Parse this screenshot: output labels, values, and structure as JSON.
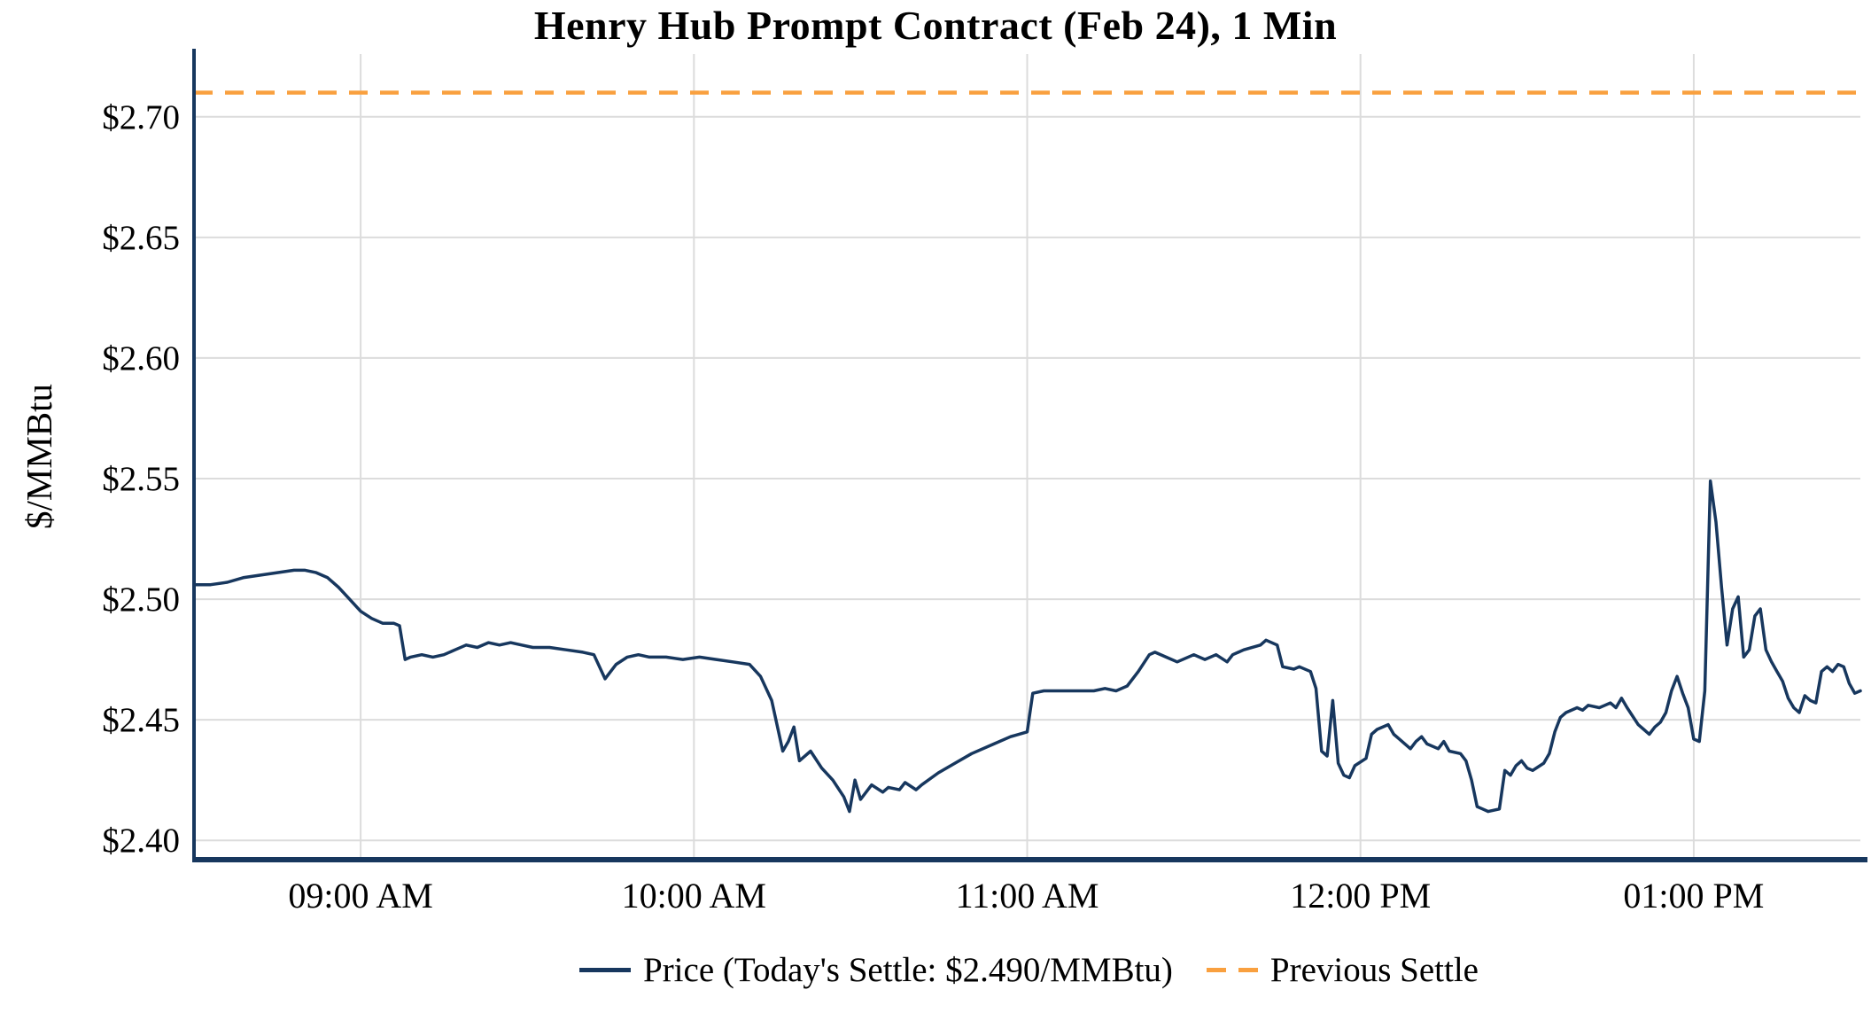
{
  "title": "Henry Hub Prompt Contract (Feb 24), 1 Min",
  "y_axis": {
    "label": "$/MMBtu"
  },
  "legend": {
    "price_label": "Price (Today's Settle: $2.490/MMBtu)",
    "previous_settle_label": "Previous Settle"
  },
  "colors": {
    "price": "#17375E",
    "previous_settle": "#F9A03F",
    "grid": "#DCDCDC",
    "axis": "#17375E",
    "background": "#FFFFFF",
    "text": "#000000"
  },
  "chart_data": {
    "type": "line",
    "title": "Henry Hub Prompt Contract (Feb 24), 1 Min",
    "xlabel": "",
    "ylabel": "$/MMBtu",
    "x_unit": "minutes after 08:30 AM",
    "xlim_minutes": [
      0,
      300
    ],
    "ylim": [
      2.392,
      2.726
    ],
    "grid": true,
    "legend_position": "bottom",
    "x_ticks": [
      {
        "minutes": 30,
        "label": "09:00 AM"
      },
      {
        "minutes": 90,
        "label": "10:00 AM"
      },
      {
        "minutes": 150,
        "label": "11:00 AM"
      },
      {
        "minutes": 210,
        "label": "12:00 PM"
      },
      {
        "minutes": 270,
        "label": "01:00 PM"
      }
    ],
    "y_ticks": [
      {
        "value": 2.4,
        "label": "$2.40"
      },
      {
        "value": 2.45,
        "label": "$2.45"
      },
      {
        "value": 2.5,
        "label": "$2.50"
      },
      {
        "value": 2.55,
        "label": "$2.55"
      },
      {
        "value": 2.6,
        "label": "$2.60"
      },
      {
        "value": 2.65,
        "label": "$2.65"
      },
      {
        "value": 2.7,
        "label": "$2.70"
      }
    ],
    "todays_settle": 2.49,
    "previous_settle": 2.71,
    "series": [
      {
        "name": "Price",
        "type": "line",
        "points": [
          [
            0,
            2.506
          ],
          [
            3,
            2.506
          ],
          [
            6,
            2.507
          ],
          [
            9,
            2.509
          ],
          [
            12,
            2.51
          ],
          [
            15,
            2.511
          ],
          [
            18,
            2.512
          ],
          [
            20,
            2.512
          ],
          [
            22,
            2.511
          ],
          [
            24,
            2.509
          ],
          [
            26,
            2.505
          ],
          [
            28,
            2.5
          ],
          [
            30,
            2.495
          ],
          [
            32,
            2.492
          ],
          [
            34,
            2.49
          ],
          [
            36,
            2.49
          ],
          [
            37,
            2.489
          ],
          [
            38,
            2.475
          ],
          [
            39,
            2.476
          ],
          [
            41,
            2.477
          ],
          [
            43,
            2.476
          ],
          [
            45,
            2.477
          ],
          [
            47,
            2.479
          ],
          [
            49,
            2.481
          ],
          [
            51,
            2.48
          ],
          [
            53,
            2.482
          ],
          [
            55,
            2.481
          ],
          [
            57,
            2.482
          ],
          [
            59,
            2.481
          ],
          [
            61,
            2.48
          ],
          [
            64,
            2.48
          ],
          [
            67,
            2.479
          ],
          [
            70,
            2.478
          ],
          [
            72,
            2.477
          ],
          [
            74,
            2.467
          ],
          [
            76,
            2.473
          ],
          [
            78,
            2.476
          ],
          [
            80,
            2.477
          ],
          [
            82,
            2.476
          ],
          [
            85,
            2.476
          ],
          [
            88,
            2.475
          ],
          [
            91,
            2.476
          ],
          [
            94,
            2.475
          ],
          [
            97,
            2.474
          ],
          [
            100,
            2.473
          ],
          [
            102,
            2.468
          ],
          [
            104,
            2.458
          ],
          [
            106,
            2.437
          ],
          [
            107,
            2.441
          ],
          [
            108,
            2.447
          ],
          [
            109,
            2.433
          ],
          [
            111,
            2.437
          ],
          [
            113,
            2.43
          ],
          [
            115,
            2.425
          ],
          [
            117,
            2.418
          ],
          [
            118,
            2.412
          ],
          [
            119,
            2.425
          ],
          [
            120,
            2.417
          ],
          [
            122,
            2.423
          ],
          [
            124,
            2.42
          ],
          [
            125,
            2.422
          ],
          [
            127,
            2.421
          ],
          [
            128,
            2.424
          ],
          [
            130,
            2.421
          ],
          [
            131,
            2.423
          ],
          [
            134,
            2.428
          ],
          [
            137,
            2.432
          ],
          [
            140,
            2.436
          ],
          [
            144,
            2.44
          ],
          [
            147,
            2.443
          ],
          [
            150,
            2.445
          ],
          [
            151,
            2.461
          ],
          [
            153,
            2.462
          ],
          [
            156,
            2.462
          ],
          [
            159,
            2.462
          ],
          [
            162,
            2.462
          ],
          [
            164,
            2.463
          ],
          [
            166,
            2.462
          ],
          [
            168,
            2.464
          ],
          [
            170,
            2.47
          ],
          [
            172,
            2.477
          ],
          [
            173,
            2.478
          ],
          [
            175,
            2.476
          ],
          [
            177,
            2.474
          ],
          [
            180,
            2.477
          ],
          [
            182,
            2.475
          ],
          [
            184,
            2.477
          ],
          [
            186,
            2.474
          ],
          [
            187,
            2.477
          ],
          [
            189,
            2.479
          ],
          [
            192,
            2.481
          ],
          [
            193,
            2.483
          ],
          [
            195,
            2.481
          ],
          [
            196,
            2.472
          ],
          [
            198,
            2.471
          ],
          [
            199,
            2.472
          ],
          [
            201,
            2.47
          ],
          [
            202,
            2.463
          ],
          [
            203,
            2.437
          ],
          [
            204,
            2.435
          ],
          [
            205,
            2.458
          ],
          [
            206,
            2.432
          ],
          [
            207,
            2.427
          ],
          [
            208,
            2.426
          ],
          [
            209,
            2.431
          ],
          [
            211,
            2.434
          ],
          [
            212,
            2.444
          ],
          [
            213,
            2.446
          ],
          [
            215,
            2.448
          ],
          [
            216,
            2.444
          ],
          [
            217,
            2.442
          ],
          [
            219,
            2.438
          ],
          [
            220,
            2.441
          ],
          [
            221,
            2.443
          ],
          [
            222,
            2.44
          ],
          [
            224,
            2.438
          ],
          [
            225,
            2.441
          ],
          [
            226,
            2.437
          ],
          [
            228,
            2.436
          ],
          [
            229,
            2.433
          ],
          [
            230,
            2.425
          ],
          [
            231,
            2.414
          ],
          [
            232,
            2.413
          ],
          [
            233,
            2.412
          ],
          [
            235,
            2.413
          ],
          [
            236,
            2.429
          ],
          [
            237,
            2.427
          ],
          [
            238,
            2.431
          ],
          [
            239,
            2.433
          ],
          [
            240,
            2.43
          ],
          [
            241,
            2.429
          ],
          [
            243,
            2.432
          ],
          [
            244,
            2.436
          ],
          [
            245,
            2.445
          ],
          [
            246,
            2.451
          ],
          [
            247,
            2.453
          ],
          [
            249,
            2.455
          ],
          [
            250,
            2.454
          ],
          [
            251,
            2.456
          ],
          [
            253,
            2.455
          ],
          [
            254,
            2.456
          ],
          [
            255,
            2.457
          ],
          [
            256,
            2.455
          ],
          [
            257,
            2.459
          ],
          [
            258,
            2.455
          ],
          [
            260,
            2.448
          ],
          [
            261,
            2.446
          ],
          [
            262,
            2.444
          ],
          [
            263,
            2.447
          ],
          [
            264,
            2.449
          ],
          [
            265,
            2.453
          ],
          [
            266,
            2.462
          ],
          [
            267,
            2.468
          ],
          [
            268,
            2.461
          ],
          [
            269,
            2.455
          ],
          [
            270,
            2.442
          ],
          [
            271,
            2.441
          ],
          [
            272,
            2.462
          ],
          [
            273,
            2.549
          ],
          [
            274,
            2.532
          ],
          [
            275,
            2.505
          ],
          [
            276,
            2.481
          ],
          [
            277,
            2.496
          ],
          [
            278,
            2.501
          ],
          [
            279,
            2.476
          ],
          [
            280,
            2.479
          ],
          [
            281,
            2.493
          ],
          [
            282,
            2.496
          ],
          [
            283,
            2.479
          ],
          [
            284,
            2.474
          ],
          [
            285,
            2.47
          ],
          [
            286,
            2.466
          ],
          [
            287,
            2.459
          ],
          [
            288,
            2.455
          ],
          [
            289,
            2.453
          ],
          [
            290,
            2.46
          ],
          [
            291,
            2.458
          ],
          [
            292,
            2.457
          ],
          [
            293,
            2.47
          ],
          [
            294,
            2.472
          ],
          [
            295,
            2.47
          ],
          [
            296,
            2.473
          ],
          [
            297,
            2.472
          ],
          [
            298,
            2.465
          ],
          [
            299,
            2.461
          ],
          [
            300,
            2.462
          ]
        ]
      },
      {
        "name": "Previous Settle",
        "type": "hline",
        "value": 2.71,
        "style": "dashed"
      }
    ]
  }
}
